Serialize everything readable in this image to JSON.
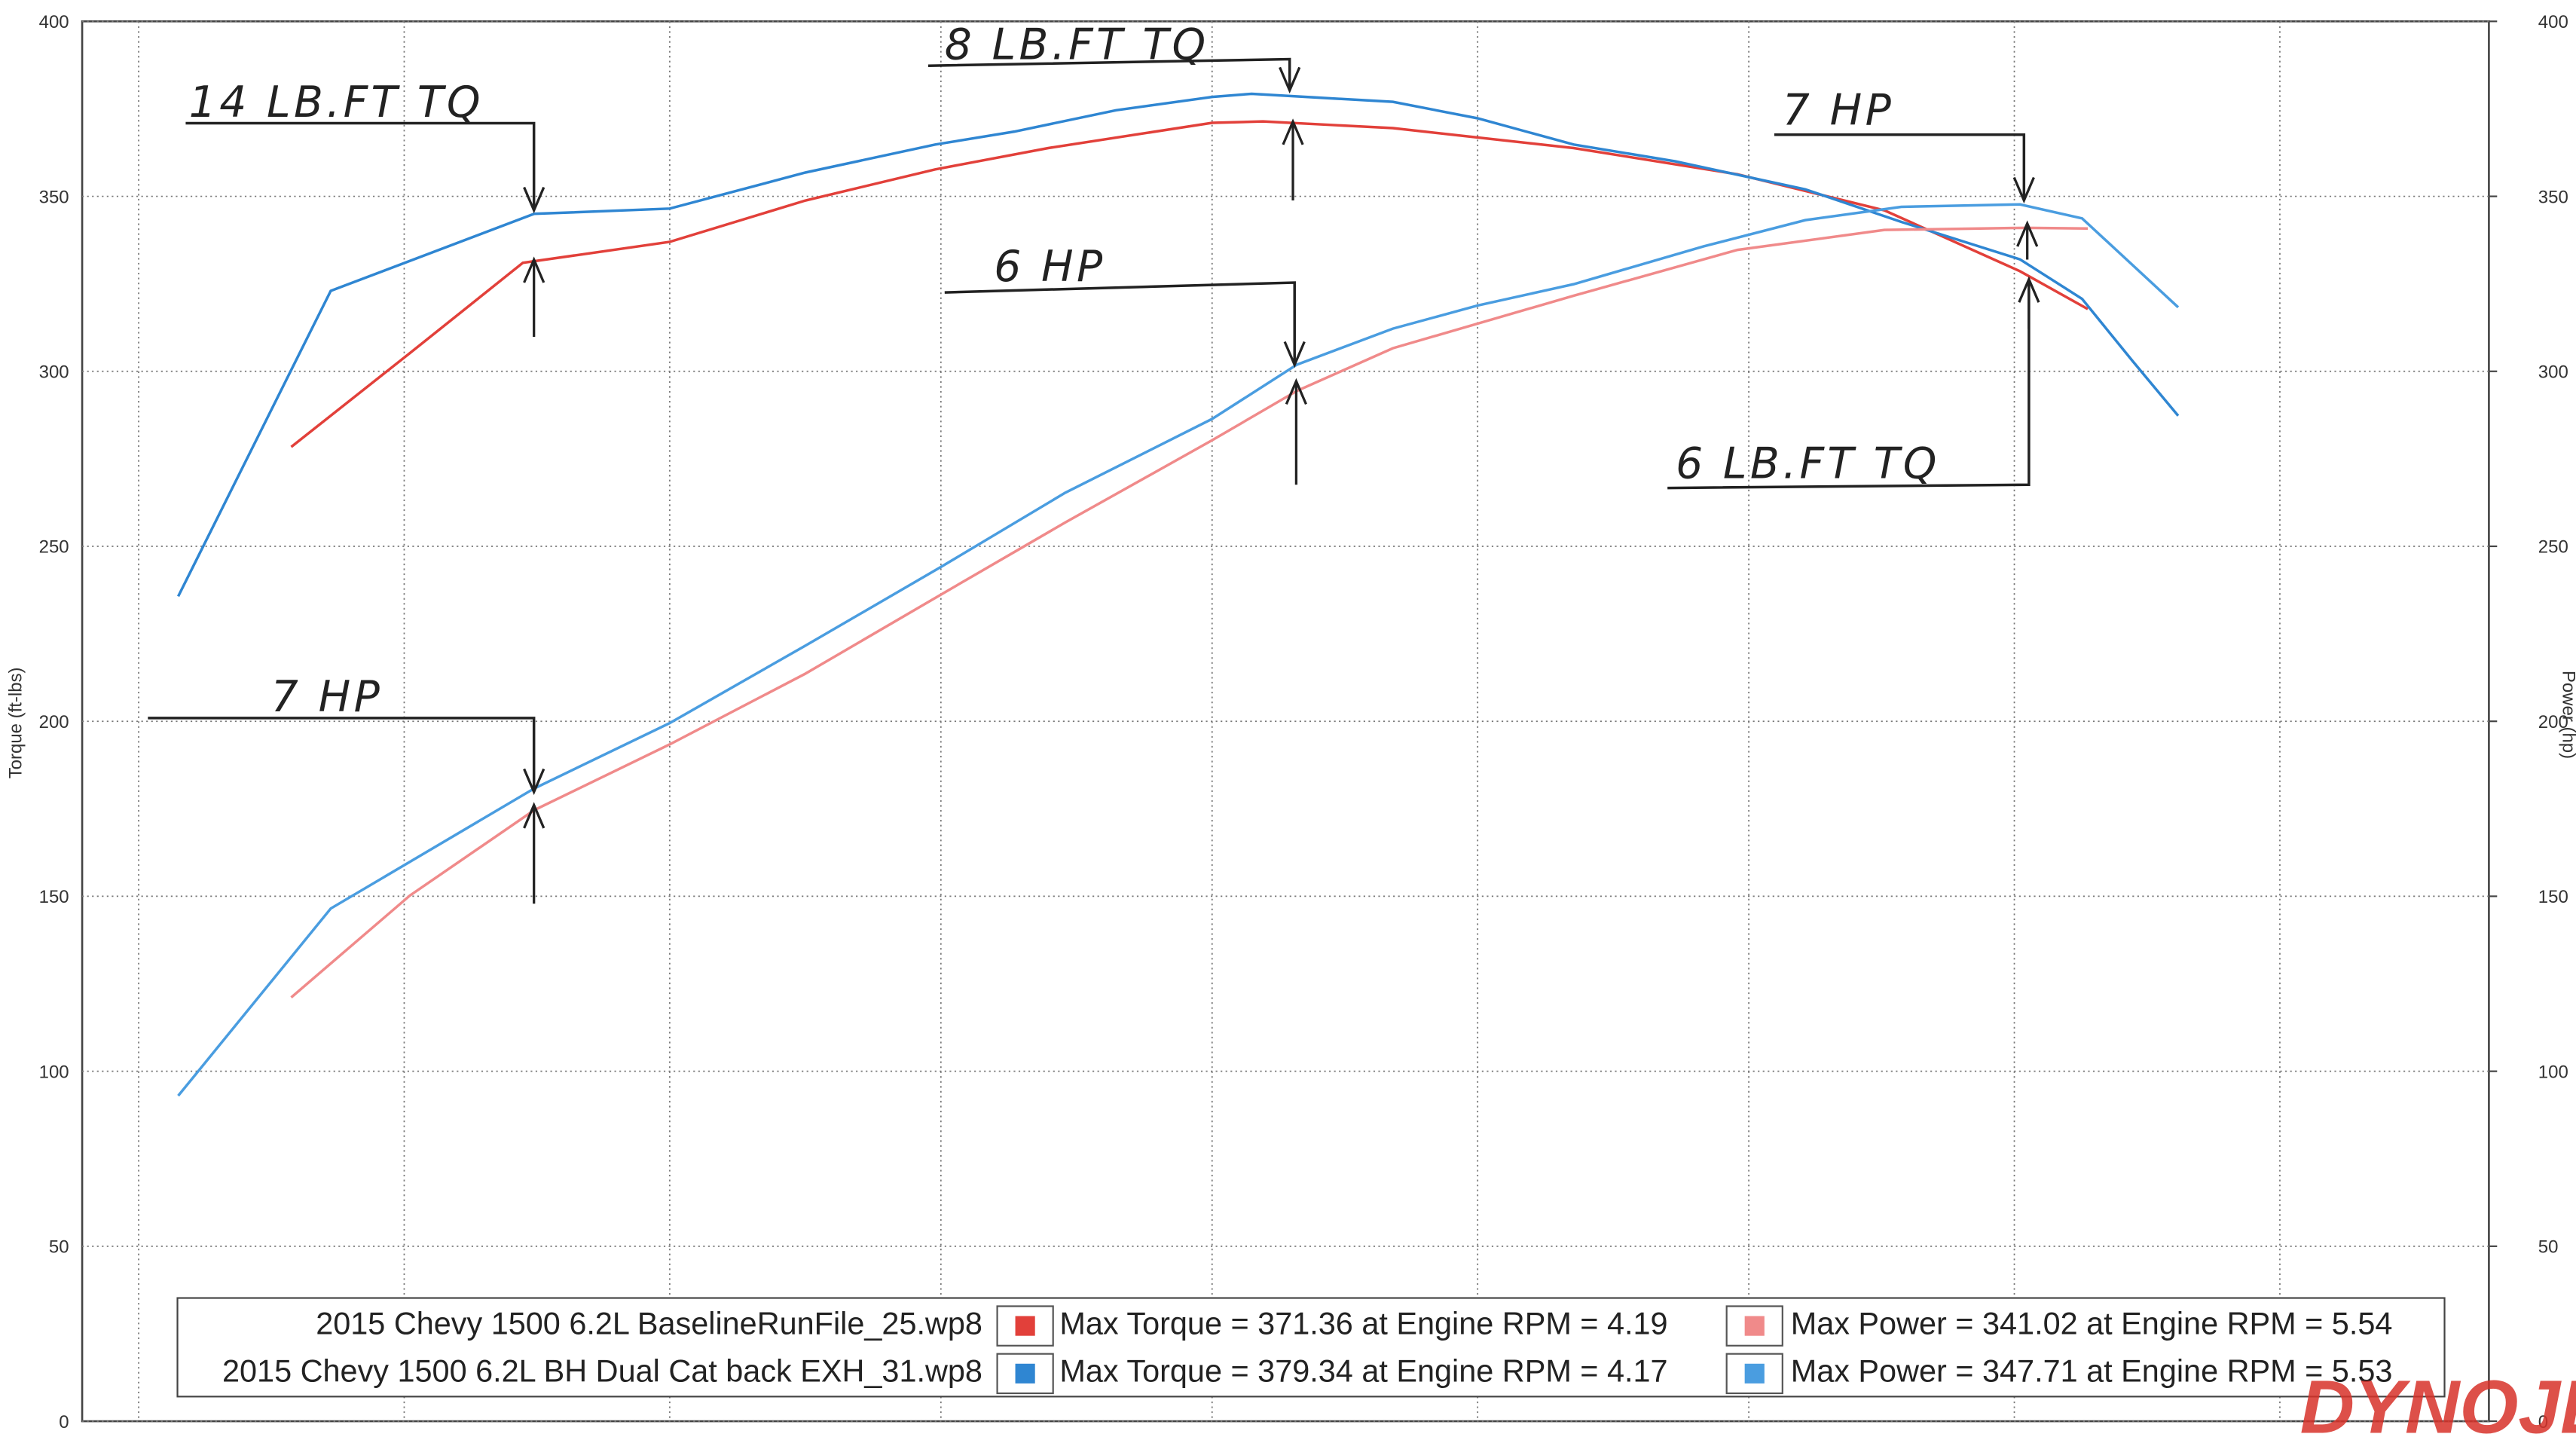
{
  "chart_data": {
    "type": "line",
    "y_label": "Torque (ft-lbs)",
    "y2_label": "Power (hp)",
    "xlim": [
      2.1,
      6.36
    ],
    "xticks": [
      2.2,
      2.67,
      3.14,
      3.62,
      4.1,
      4.57,
      5.05,
      5.52,
      5.99
    ],
    "ylim": [
      0,
      400
    ],
    "yticks": [
      0,
      50,
      100,
      150,
      200,
      250,
      300,
      350,
      400
    ],
    "y2lim": [
      0,
      400
    ],
    "y2ticks": [
      0,
      50,
      100,
      150,
      200,
      250,
      300,
      350,
      400
    ],
    "grid": true,
    "series": [
      {
        "color": "#e2403a",
        "x": [
          2.47,
          2.68,
          2.88,
          3.14,
          3.38,
          3.61,
          3.81,
          4.1,
          4.19,
          4.42,
          4.74,
          5.03,
          5.29,
          5.53,
          5.65
        ],
        "values": [
          278.4,
          305.2,
          331,
          337,
          348.8,
          357.7,
          363.8,
          371,
          371.4,
          369.5,
          363.8,
          356.3,
          346,
          328.6,
          317.8
        ]
      },
      {
        "color": "#2f86d2",
        "x": [
          2.27,
          2.54,
          2.9,
          3.14,
          3.38,
          3.61,
          3.75,
          3.93,
          4.1,
          4.17,
          4.42,
          4.57,
          4.74,
          4.92,
          5.15,
          5.32,
          5.53,
          5.64,
          5.73,
          5.81
        ],
        "values": [
          235.7,
          323,
          345,
          346.5,
          356.8,
          364.8,
          368.5,
          374.6,
          378.4,
          379.3,
          377,
          372.3,
          364.8,
          360,
          352,
          342.7,
          332,
          320.7,
          302.8,
          287.3
        ]
      },
      {
        "color": "#f08a8a",
        "axis": "y2",
        "x": [
          2.47,
          2.68,
          2.9,
          3.14,
          3.38,
          3.62,
          3.84,
          4.1,
          4.25,
          4.42,
          4.74,
          5.03,
          5.29,
          5.54,
          5.65
        ],
        "values": [
          121.1,
          150.2,
          174.6,
          193.4,
          213.6,
          236.2,
          256.8,
          280.3,
          294.4,
          306.6,
          321.6,
          334.7,
          340.4,
          341,
          340.8
        ]
      },
      {
        "color": "#4a9de0",
        "axis": "y2",
        "x": [
          2.27,
          2.54,
          2.9,
          3.14,
          3.38,
          3.62,
          3.84,
          4.1,
          4.25,
          4.42,
          4.57,
          4.74,
          4.97,
          5.15,
          5.32,
          5.53,
          5.64,
          5.81
        ],
        "values": [
          93,
          146.5,
          180.8,
          199.5,
          221.6,
          244.1,
          265.3,
          286.4,
          301.9,
          312.2,
          318.8,
          324.9,
          335.7,
          343.2,
          347,
          347.7,
          343.7,
          318.3
        ]
      }
    ],
    "legend_rows": [
      {
        "run": "2015 Chevy 1500 6.2L BaselineRunFile_25.wp8",
        "torque": "Max Torque = 371.36 at Engine RPM = 4.19",
        "power": "Max Power = 341.02 at Engine RPM = 5.54"
      },
      {
        "run": "2015 Chevy 1500 6.2L BH Dual Cat back EXH_31.wp8",
        "torque": "Max Torque = 379.34 at Engine RPM = 4.17",
        "power": "Max Power = 347.71 at Engine RPM = 5.53"
      }
    ],
    "annotations": [
      "14 LB.FT TQ",
      "8 LB.FT TQ",
      "7 HP",
      "6 HP",
      "7 HP",
      "6 LB.FT TQ"
    ],
    "logo": "DYNOJET"
  }
}
